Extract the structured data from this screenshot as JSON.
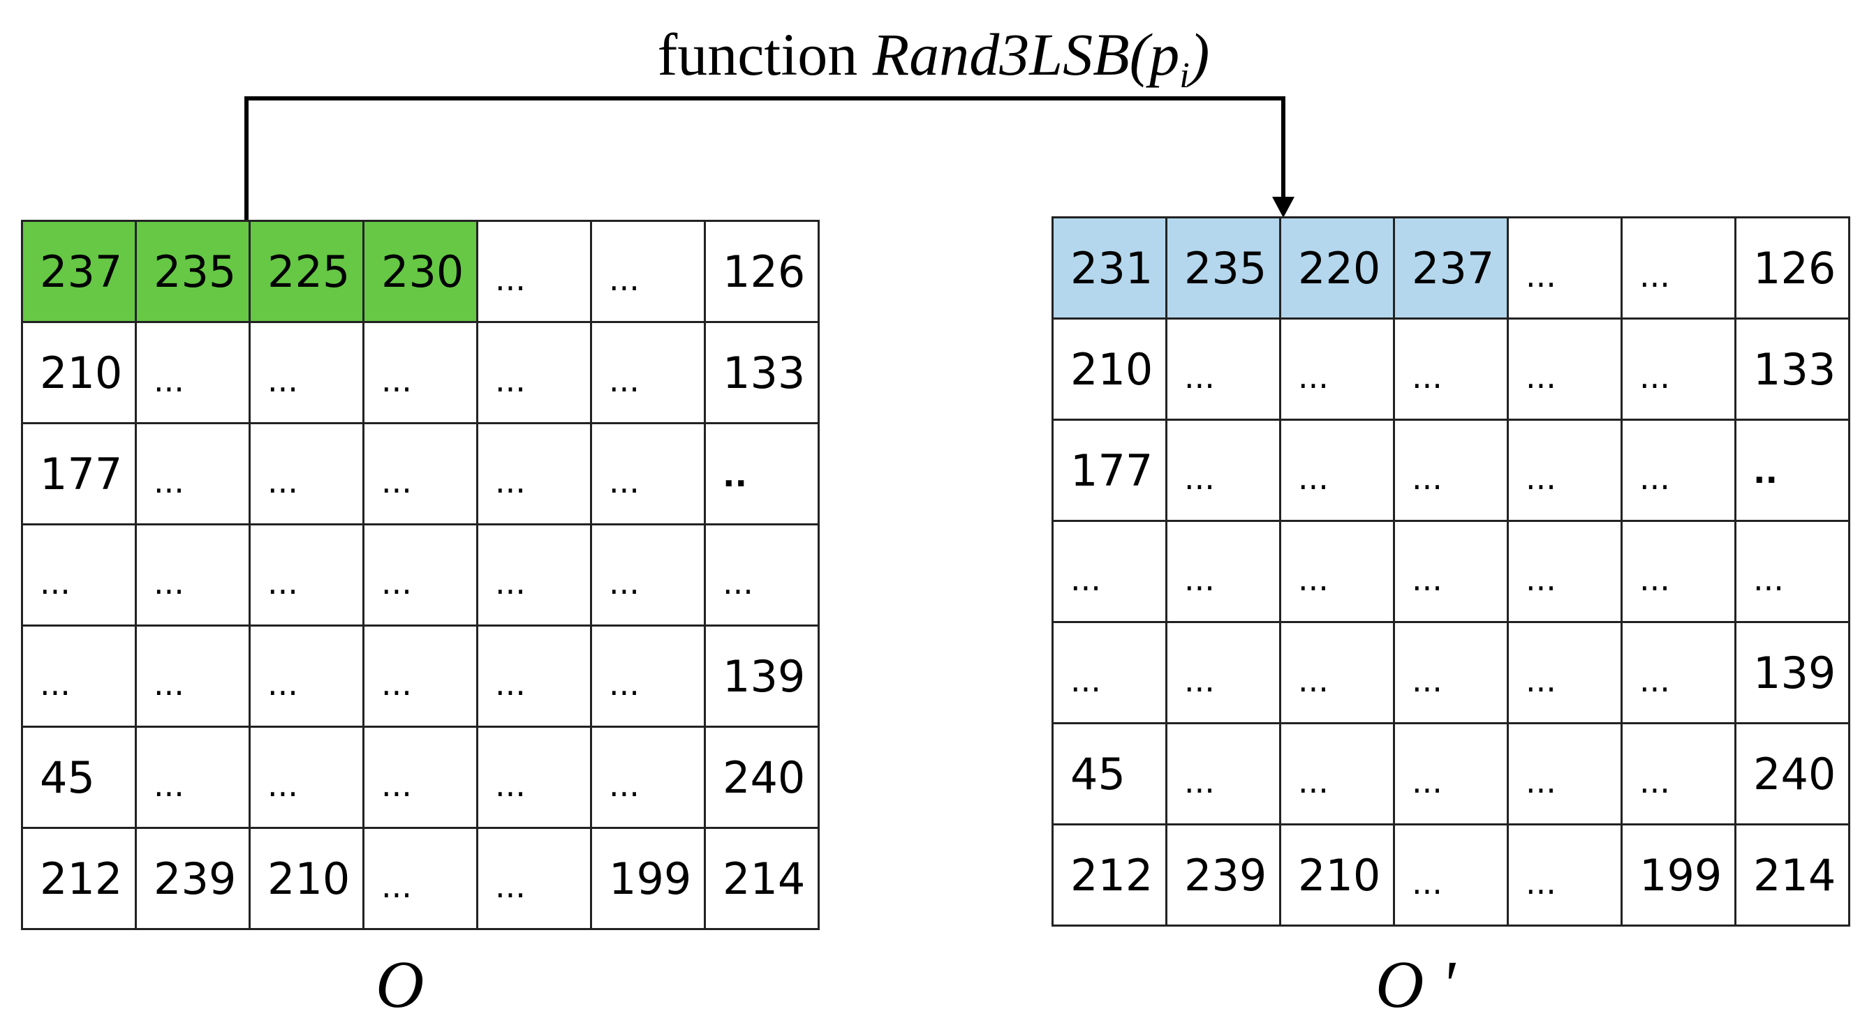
{
  "title": {
    "prefix": "function ",
    "function_name": "Rand3LSB(p",
    "subscript": "i",
    "suffix": ")"
  },
  "grids": {
    "original": {
      "label": "O",
      "highlight_color": "#66c845",
      "rows": [
        [
          "237",
          "235",
          "225",
          "230",
          "...",
          "...",
          "126"
        ],
        [
          "210",
          "...",
          "...",
          "...",
          "...",
          "...",
          "133"
        ],
        [
          "177",
          "...",
          "...",
          "...",
          "...",
          "...",
          ".."
        ],
        [
          "...",
          "...",
          "...",
          "...",
          "...",
          "...",
          "..."
        ],
        [
          "...",
          "...",
          "...",
          "...",
          "...",
          "...",
          "139"
        ],
        [
          "45",
          "...",
          "...",
          "...",
          "...",
          "...",
          "240"
        ],
        [
          "212",
          "239",
          "210",
          "...",
          "...",
          "199",
          "214"
        ]
      ]
    },
    "modified": {
      "label": "O '",
      "highlight_color": "#b4d7ed",
      "rows": [
        [
          "231",
          "235",
          "220",
          "237",
          "...",
          "...",
          "126"
        ],
        [
          "210",
          "...",
          "...",
          "...",
          "...",
          "...",
          "133"
        ],
        [
          "177",
          "...",
          "...",
          "...",
          "...",
          "...",
          ".."
        ],
        [
          "...",
          "...",
          "...",
          "...",
          "...",
          "...",
          "..."
        ],
        [
          "...",
          "...",
          "...",
          "...",
          "...",
          "...",
          "139"
        ],
        [
          "45",
          "...",
          "...",
          "...",
          "...",
          "...",
          "240"
        ],
        [
          "212",
          "239",
          "210",
          "...",
          "...",
          "199",
          "214"
        ]
      ]
    }
  }
}
